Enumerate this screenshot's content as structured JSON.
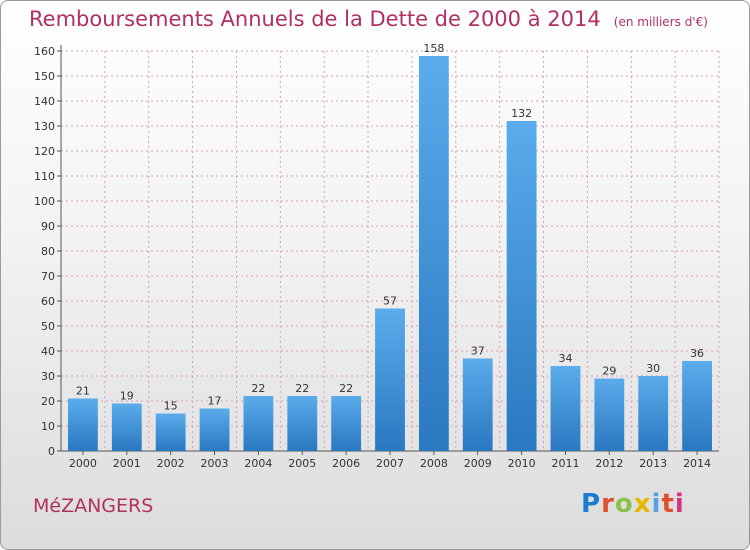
{
  "chart_data": {
    "type": "bar",
    "title": "Remboursements Annuels de la Dette de 2000 à 2014",
    "subtitle": "(en milliers d'€)",
    "categories": [
      "2000",
      "2001",
      "2002",
      "2003",
      "2004",
      "2005",
      "2006",
      "2007",
      "2008",
      "2009",
      "2010",
      "2011",
      "2012",
      "2013",
      "2014"
    ],
    "values": [
      21,
      19,
      15,
      17,
      22,
      22,
      22,
      57,
      158,
      37,
      132,
      34,
      29,
      30,
      36
    ],
    "ylim": [
      0,
      160
    ],
    "yticks": [
      0,
      10,
      20,
      30,
      40,
      50,
      60,
      70,
      80,
      90,
      100,
      110,
      120,
      130,
      140,
      150,
      160
    ],
    "grid": true,
    "bar_color": "#3a8fd8",
    "grid_color": "#d6a0b8"
  },
  "footer": {
    "commune": "MéZANGERS",
    "logo_text": "Proxiti"
  }
}
